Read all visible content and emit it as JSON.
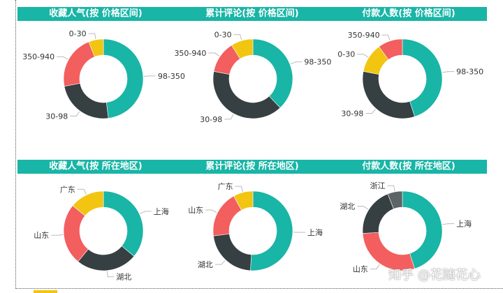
{
  "watermark": "知乎 @花随花心",
  "colors": {
    "teal": "#19b5a6",
    "dark": "#363f41",
    "salmon": "#f35e5e",
    "yellow": "#f2c511",
    "gray": "#5d6466",
    "header": "#19b5a6",
    "label_text": "#333333",
    "leader_line": "#bbbbbb"
  },
  "rows": [
    {
      "panels": [
        {
          "title": "收藏人气(按 价格区间)"
        },
        {
          "title": "累计评论(按 价格区间)"
        },
        {
          "title": "付款人数(按 价格区间)"
        }
      ]
    },
    {
      "panels": [
        {
          "title": "收藏人气(按 所在地区)"
        },
        {
          "title": "累计评论(按 所在地区)"
        },
        {
          "title": "付款人数(按 所在地区)"
        }
      ]
    }
  ],
  "chart_data": [
    {
      "type": "pie",
      "title": "收藏人气(按 价格区间)",
      "slices": [
        {
          "label": "98-350",
          "value": 48,
          "color": "teal"
        },
        {
          "label": "30-98",
          "value": 24,
          "color": "dark"
        },
        {
          "label": "350-940",
          "value": 22,
          "color": "salmon"
        },
        {
          "label": "0-30",
          "value": 6,
          "color": "yellow"
        }
      ]
    },
    {
      "type": "pie",
      "title": "累计评论(按 价格区间)",
      "slices": [
        {
          "label": "98-350",
          "value": 38,
          "color": "teal"
        },
        {
          "label": "30-98",
          "value": 40,
          "color": "dark"
        },
        {
          "label": "350-940",
          "value": 13,
          "color": "salmon"
        },
        {
          "label": "0-30",
          "value": 9,
          "color": "yellow"
        }
      ]
    },
    {
      "type": "pie",
      "title": "付款人数(按 价格区间)",
      "slices": [
        {
          "label": "98-350",
          "value": 45,
          "color": "teal"
        },
        {
          "label": "30-98",
          "value": 33,
          "color": "dark"
        },
        {
          "label": "0-30",
          "value": 12,
          "color": "yellow"
        },
        {
          "label": "350-940",
          "value": 10,
          "color": "salmon"
        }
      ]
    },
    {
      "type": "pie",
      "title": "收藏人气(按 所在地区)",
      "slices": [
        {
          "label": "上海",
          "value": 36,
          "color": "teal"
        },
        {
          "label": "湖北",
          "value": 25,
          "color": "dark"
        },
        {
          "label": "山东",
          "value": 25,
          "color": "salmon"
        },
        {
          "label": "广东",
          "value": 14,
          "color": "yellow"
        }
      ]
    },
    {
      "type": "pie",
      "title": "累计评论(按 所在地区)",
      "slices": [
        {
          "label": "上海",
          "value": 51,
          "color": "teal"
        },
        {
          "label": "湖北",
          "value": 22,
          "color": "dark"
        },
        {
          "label": "山东",
          "value": 19,
          "color": "salmon"
        },
        {
          "label": "广东",
          "value": 8,
          "color": "yellow"
        }
      ]
    },
    {
      "type": "pie",
      "title": "付款人数(按 所在地区)",
      "slices": [
        {
          "label": "上海",
          "value": 45,
          "color": "teal"
        },
        {
          "label": "山东",
          "value": 29,
          "color": "salmon"
        },
        {
          "label": "湖北",
          "value": 20,
          "color": "dark"
        },
        {
          "label": "浙江",
          "value": 6,
          "color": "gray"
        }
      ]
    }
  ]
}
